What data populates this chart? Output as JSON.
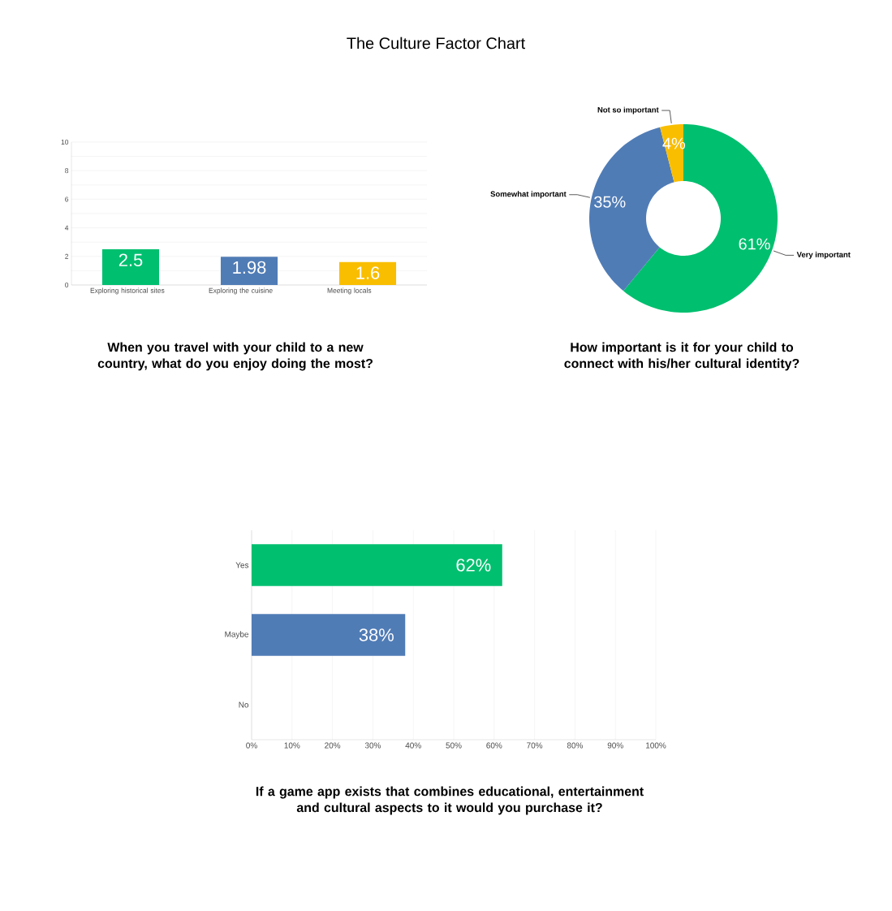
{
  "chart_data": [
    {
      "type": "other",
      "title": "The Culture Factor Chart"
    },
    {
      "type": "bar",
      "title": "When you travel with your child to a new country, what do you enjoy doing the most?",
      "categories": [
        "Exploring historical sites",
        "Exploring the cuisine",
        "Meeting locals"
      ],
      "values": [
        2.5,
        1.98,
        1.6
      ],
      "colors": [
        "#00bf6f",
        "#507cb6",
        "#f9be00"
      ],
      "ylim": [
        0,
        10
      ],
      "yticks": [
        0,
        {
          "value": 1,
          "label": null
        },
        2,
        {
          "value": 3,
          "label": null
        },
        4,
        {
          "value": 5,
          "label": null
        },
        6,
        {
          "value": 7,
          "label": null
        },
        8,
        {
          "value": 9,
          "label": null
        },
        10
      ],
      "grid": "y",
      "data_labels": true
    },
    {
      "type": "donut",
      "title": "How important is it for your child to connect with his/her cultural identity?",
      "categories": [
        "Very important",
        "Somewhat important",
        "Not so important"
      ],
      "values": [
        61,
        35,
        4
      ],
      "colors": [
        "#00bf6f",
        "#507cb6",
        "#f9be00"
      ],
      "value_labels": [
        "61%",
        "35%",
        "4%"
      ]
    },
    {
      "type": "bar",
      "orientation": "horizontal",
      "title": "If a game app exists that combines educational, entertainment and cultural aspects to it would you purchase it?",
      "categories": [
        "Yes",
        "Maybe",
        "No"
      ],
      "values": [
        62,
        38,
        0
      ],
      "colors": [
        "#00bf6f",
        "#507cb6",
        "#cccccc"
      ],
      "value_labels": [
        "62%",
        "38%",
        null
      ],
      "xlim": [
        0,
        100
      ],
      "xticks": [
        {
          "value": 0,
          "label": "0%"
        },
        {
          "value": 10,
          "label": "10%"
        },
        {
          "value": 20,
          "label": "20%"
        },
        {
          "value": 30,
          "label": "30%"
        },
        {
          "value": 40,
          "label": "40%"
        },
        {
          "value": 50,
          "label": "50%"
        },
        {
          "value": 60,
          "label": "60%"
        },
        {
          "value": 70,
          "label": "70%"
        },
        {
          "value": 80,
          "label": "80%"
        },
        {
          "value": 90,
          "label": "90%"
        },
        {
          "value": 100,
          "label": "100%"
        }
      ],
      "grid": "x"
    }
  ]
}
